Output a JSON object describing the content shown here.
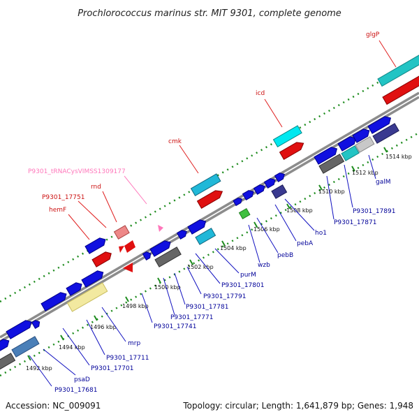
{
  "title": "Prochlorococcus marinus str. MIT 9301, complete genome",
  "footer": {
    "accession": "Accession: NC_009091",
    "topology": "Topology: circular; Length: 1,641,879 bp; Genes: 1,948"
  },
  "colors": {
    "backbone": "#8c8c8c",
    "dots": "#1e8c1e",
    "gene_forward": "#1010e0",
    "gene_reverse": "#e01010",
    "label_reverse": "#cc1111",
    "label_forward": "#000099",
    "trna": "#ff77bb",
    "cyan": "#20b8d8",
    "teal": "#22c4c4",
    "gray": "#666666",
    "light": "#c8c8c8",
    "navy": "#3a3a90",
    "yellow": "#f2e9a0",
    "green": "#40c040",
    "pink": "#ee8888",
    "steel": "#4a7fb8"
  },
  "ticks": [
    "1492 kbp",
    "1494 kbp",
    "1496 kbp",
    "1498 kbp",
    "1500 kbp",
    "1502 kbp",
    "1504 kbp",
    "1506 kbp",
    "1508 kbp",
    "1510 kbp",
    "1512 kbp",
    "1514 kbp"
  ],
  "upper_labels": [
    "glgP",
    "icd",
    "cmk",
    "P9301_tRNACysVIMSS1309177",
    "rnd",
    "P9301_17751",
    "hemF"
  ],
  "lower_labels": [
    "P9301_17681",
    "psaD",
    "P9301_17701",
    "P9301_17711",
    "mrp",
    "P9301_17741",
    "P9301_17771",
    "P9301_17781",
    "P9301_17791",
    "P9301_17801",
    "purM",
    "wzb",
    "pebB",
    "pebA",
    "ho1",
    "P9301_17871",
    "P9301_17891",
    "galM"
  ]
}
